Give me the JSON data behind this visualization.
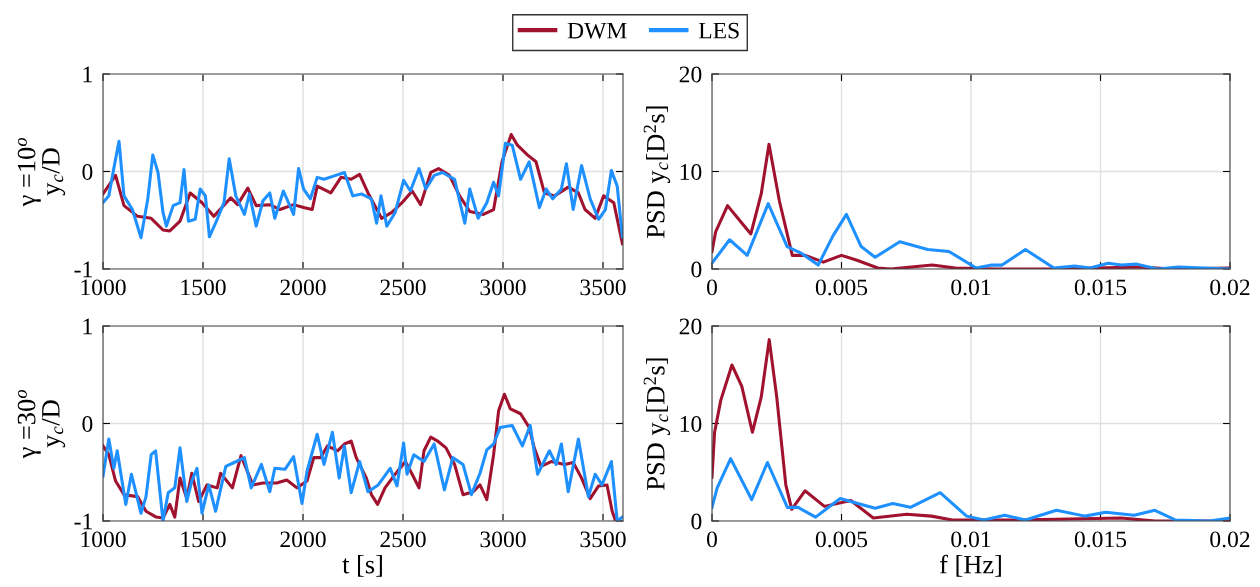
{
  "chart_data": [
    {
      "type": "line",
      "ylabel": "γ =10$^{o}$\ny$_{c}$/D",
      "xlim": [
        1000,
        3600
      ],
      "xticks": [
        1000,
        1500,
        2000,
        2500,
        3000,
        3500
      ],
      "ylim": [
        -1,
        1
      ],
      "yticks": [
        -1,
        0,
        1
      ],
      "grid": true,
      "legend": "top",
      "series": [
        {
          "name": "DWM",
          "color": "#a0122e",
          "x": [
            1000,
            1063,
            1105,
            1173,
            1241,
            1300,
            1334,
            1385,
            1436,
            1495,
            1554,
            1639,
            1673,
            1724,
            1766,
            1834,
            1885,
            1953,
            2003,
            2046,
            2071,
            2139,
            2190,
            2241,
            2283,
            2325,
            2393,
            2444,
            2495,
            2546,
            2588,
            2639,
            2678,
            2732,
            2783,
            2834,
            2902,
            2953,
            2995,
            3041,
            3072,
            3122,
            3165,
            3207,
            3258,
            3326,
            3377,
            3410,
            3461,
            3503,
            3554,
            3597
          ],
          "values": [
            -0.23,
            -0.04,
            -0.35,
            -0.46,
            -0.48,
            -0.6,
            -0.61,
            -0.51,
            -0.22,
            -0.32,
            -0.46,
            -0.27,
            -0.34,
            -0.17,
            -0.35,
            -0.34,
            -0.39,
            -0.34,
            -0.37,
            -0.39,
            -0.15,
            -0.22,
            -0.06,
            -0.08,
            -0.03,
            -0.22,
            -0.48,
            -0.42,
            -0.32,
            -0.2,
            -0.34,
            -0.01,
            0.03,
            -0.04,
            -0.25,
            -0.41,
            -0.44,
            -0.39,
            0.1,
            0.38,
            0.27,
            0.17,
            0.1,
            -0.22,
            -0.25,
            -0.16,
            -0.22,
            -0.39,
            -0.48,
            -0.25,
            -0.32,
            -0.74
          ]
        },
        {
          "name": "LES",
          "color": "#1e90ff",
          "x": [
            1000,
            1029,
            1054,
            1080,
            1105,
            1147,
            1190,
            1224,
            1249,
            1275,
            1300,
            1317,
            1351,
            1385,
            1405,
            1427,
            1461,
            1486,
            1512,
            1532,
            1571,
            1605,
            1631,
            1664,
            1707,
            1732,
            1766,
            1800,
            1834,
            1859,
            1902,
            1953,
            1978,
            2003,
            2037,
            2071,
            2105,
            2164,
            2207,
            2249,
            2292,
            2342,
            2368,
            2390,
            2419,
            2461,
            2503,
            2537,
            2580,
            2614,
            2656,
            2698,
            2758,
            2809,
            2834,
            2876,
            2919,
            2953,
            2978,
            3012,
            3046,
            3088,
            3131,
            3182,
            3216,
            3249,
            3292,
            3317,
            3351,
            3393,
            3436,
            3478,
            3512,
            3542,
            3571,
            3597
          ],
          "values": [
            -0.32,
            -0.25,
            0.03,
            0.31,
            -0.25,
            -0.39,
            -0.68,
            -0.28,
            0.17,
            -0.01,
            -0.42,
            -0.56,
            -0.35,
            -0.32,
            0.02,
            -0.51,
            -0.49,
            -0.18,
            -0.25,
            -0.67,
            -0.49,
            -0.32,
            0.13,
            -0.25,
            -0.44,
            -0.23,
            -0.56,
            -0.3,
            -0.22,
            -0.48,
            -0.2,
            -0.44,
            0.03,
            -0.18,
            -0.28,
            -0.06,
            -0.08,
            -0.04,
            -0.01,
            -0.25,
            -0.23,
            -0.28,
            -0.53,
            -0.25,
            -0.56,
            -0.42,
            -0.09,
            -0.2,
            0.03,
            -0.18,
            -0.04,
            -0.01,
            -0.08,
            -0.53,
            -0.18,
            -0.48,
            -0.32,
            -0.11,
            -0.25,
            0.29,
            0.27,
            -0.08,
            0.1,
            -0.37,
            -0.18,
            -0.28,
            -0.18,
            0.08,
            -0.39,
            0.06,
            -0.28,
            -0.49,
            -0.39,
            0.01,
            -0.15,
            -0.67
          ]
        }
      ]
    },
    {
      "type": "line",
      "ylabel": "PSD y$_{c}$[D$^{2}$s]",
      "xlim": [
        0,
        0.02
      ],
      "xticks": [
        0,
        0.005,
        0.01,
        0.015,
        0.02
      ],
      "ylim": [
        0,
        20
      ],
      "yticks": [
        0,
        10,
        20
      ],
      "grid": true,
      "series": [
        {
          "color": "#a0122e",
          "x": [
            0,
            0.00014,
            0.0006,
            0.001,
            0.0015,
            0.0019,
            0.0022,
            0.0026,
            0.0031,
            0.0036,
            0.0043,
            0.005,
            0.0056,
            0.0064,
            0.0069,
            0.0077,
            0.0085,
            0.0094,
            0.011,
            0.0131,
            0.0165,
            0.0178,
            0.02
          ],
          "values": [
            1.8,
            3.8,
            6.5,
            5.2,
            3.6,
            7.7,
            12.8,
            7.0,
            1.4,
            1.4,
            0.7,
            1.4,
            0.9,
            0.1,
            0,
            0.2,
            0.4,
            0.1,
            0,
            0,
            0.2,
            0,
            0.1
          ]
        },
        {
          "color": "#1e90ff",
          "x": [
            0,
            0.00068,
            0.00136,
            0.00217,
            0.0029,
            0.00346,
            0.0041,
            0.00467,
            0.00519,
            0.00576,
            0.0063,
            0.00725,
            0.00833,
            0.00915,
            0.0102,
            0.0108,
            0.0112,
            0.0121,
            0.0132,
            0.014,
            0.0146,
            0.0153,
            0.0158,
            0.0164,
            0.0172,
            0.018,
            0.02
          ],
          "values": [
            0.6,
            3.0,
            1.4,
            6.7,
            2.3,
            1.6,
            0.4,
            3.4,
            5.6,
            2.3,
            1.2,
            2.8,
            2.0,
            1.8,
            0.1,
            0.4,
            0.4,
            2.0,
            0.1,
            0.3,
            0.1,
            0.6,
            0.4,
            0.5,
            0,
            0.2,
            0
          ]
        }
      ]
    },
    {
      "type": "line",
      "ylabel": "γ =30$^{o}$\ny$_{c}$/D",
      "xlabel": "t [s]",
      "xlim": [
        1000,
        3600
      ],
      "xticks": [
        1000,
        1500,
        2000,
        2500,
        3000,
        3500
      ],
      "ylim": [
        -1,
        1
      ],
      "yticks": [
        -1,
        0,
        1
      ],
      "grid": true,
      "series": [
        {
          "color": "#a0122e",
          "x": [
            1000,
            1029,
            1063,
            1105,
            1173,
            1215,
            1266,
            1300,
            1334,
            1359,
            1385,
            1419,
            1444,
            1478,
            1520,
            1571,
            1588,
            1647,
            1690,
            1749,
            1800,
            1868,
            1919,
            1970,
            2020,
            2054,
            2088,
            2122,
            2173,
            2207,
            2241,
            2266,
            2317,
            2342,
            2373,
            2410,
            2461,
            2512,
            2546,
            2580,
            2605,
            2639,
            2673,
            2715,
            2758,
            2800,
            2851,
            2885,
            2919,
            2953,
            2978,
            3007,
            3037,
            3088,
            3131,
            3156,
            3190,
            3241,
            3309,
            3351,
            3393,
            3436,
            3478,
            3520,
            3546,
            3563
          ],
          "values": [
            -0.23,
            -0.32,
            -0.59,
            -0.73,
            -0.75,
            -0.9,
            -0.96,
            -0.97,
            -0.83,
            -0.96,
            -0.56,
            -0.77,
            -0.51,
            -0.8,
            -0.63,
            -0.66,
            -0.51,
            -0.66,
            -0.33,
            -0.63,
            -0.61,
            -0.61,
            -0.58,
            -0.66,
            -0.59,
            -0.35,
            -0.35,
            -0.23,
            -0.28,
            -0.21,
            -0.18,
            -0.35,
            -0.56,
            -0.73,
            -0.83,
            -0.66,
            -0.52,
            -0.39,
            -0.52,
            -0.66,
            -0.28,
            -0.14,
            -0.18,
            -0.25,
            -0.42,
            -0.73,
            -0.7,
            -0.63,
            -0.78,
            -0.32,
            0.13,
            0.3,
            0.15,
            0.1,
            -0.04,
            -0.25,
            -0.44,
            -0.39,
            -0.42,
            -0.4,
            -0.56,
            -0.77,
            -0.64,
            -0.63,
            -0.9,
            -1.0
          ]
        },
        {
          "color": "#1e90ff",
          "x": [
            1000,
            1029,
            1054,
            1071,
            1114,
            1142,
            1190,
            1215,
            1241,
            1263,
            1300,
            1326,
            1359,
            1385,
            1419,
            1444,
            1470,
            1495,
            1529,
            1563,
            1614,
            1656,
            1707,
            1741,
            1792,
            1834,
            1859,
            1910,
            1953,
            1995,
            2020,
            2071,
            2105,
            2147,
            2181,
            2207,
            2241,
            2283,
            2325,
            2376,
            2436,
            2470,
            2503,
            2520,
            2554,
            2605,
            2656,
            2707,
            2749,
            2800,
            2842,
            2885,
            2919,
            2953,
            2986,
            3046,
            3097,
            3136,
            3173,
            3232,
            3266,
            3292,
            3326,
            3377,
            3427,
            3461,
            3495,
            3542,
            3571,
            3597
          ],
          "values": [
            -0.54,
            -0.16,
            -0.46,
            -0.28,
            -0.83,
            -0.52,
            -0.92,
            -0.75,
            -0.32,
            -0.28,
            -1.0,
            -0.71,
            -0.66,
            -0.25,
            -0.8,
            -0.59,
            -0.46,
            -0.92,
            -0.63,
            -0.9,
            -0.44,
            -0.4,
            -0.35,
            -0.66,
            -0.42,
            -0.7,
            -0.46,
            -0.47,
            -0.34,
            -0.82,
            -0.49,
            -0.11,
            -0.42,
            -0.09,
            -0.56,
            -0.23,
            -0.71,
            -0.39,
            -0.7,
            -0.63,
            -0.46,
            -0.64,
            -0.2,
            -0.52,
            -0.32,
            -0.39,
            -0.21,
            -0.68,
            -0.35,
            -0.42,
            -0.73,
            -0.51,
            -0.27,
            -0.21,
            -0.04,
            -0.02,
            -0.23,
            -0.02,
            -0.52,
            -0.28,
            -0.42,
            -0.21,
            -0.7,
            -0.16,
            -0.75,
            -0.52,
            -0.63,
            -0.39,
            -1.0,
            -0.96
          ]
        }
      ]
    },
    {
      "type": "line",
      "ylabel": "PSD y$_{c}$[D$^{2}$s]",
      "xlabel": "f [Hz]",
      "xlim": [
        0,
        0.02
      ],
      "xticks": [
        0,
        0.005,
        0.01,
        0.015,
        0.02
      ],
      "ylim": [
        0,
        20
      ],
      "yticks": [
        0,
        10,
        20
      ],
      "grid": true,
      "series": [
        {
          "color": "#a0122e",
          "x": [
            0,
            0.0001,
            0.00034,
            0.00077,
            0.00115,
            0.00156,
            0.0019,
            0.00221,
            0.0025,
            0.00285,
            0.00308,
            0.00359,
            0.00434,
            0.00536,
            0.00623,
            0.00752,
            0.00847,
            0.00928,
            0.0117,
            0.0158,
            0.0171,
            0.02
          ],
          "values": [
            4.5,
            9.1,
            12.4,
            16.0,
            13.8,
            9.1,
            12.7,
            18.6,
            12.7,
            3.7,
            1.2,
            3.1,
            1.5,
            2.1,
            0.3,
            0.7,
            0.5,
            0.1,
            0.1,
            0.3,
            0,
            0
          ]
        },
        {
          "color": "#1e90ff",
          "x": [
            0,
            0.0002,
            0.00072,
            0.00153,
            0.00214,
            0.00291,
            0.00332,
            0.004,
            0.00495,
            0.00563,
            0.0063,
            0.00698,
            0.00766,
            0.00881,
            0.00983,
            0.0105,
            0.0113,
            0.0121,
            0.0133,
            0.0144,
            0.0152,
            0.0163,
            0.0171,
            0.0179,
            0.0192,
            0.02
          ],
          "values": [
            1.4,
            3.4,
            6.4,
            2.2,
            6.0,
            1.4,
            1.4,
            0.4,
            2.3,
            1.8,
            1.3,
            1.8,
            1.4,
            2.9,
            0.5,
            0.1,
            0.6,
            0.1,
            1.1,
            0.5,
            0.9,
            0.6,
            1.1,
            0.1,
            0,
            0.3
          ]
        }
      ]
    }
  ]
}
